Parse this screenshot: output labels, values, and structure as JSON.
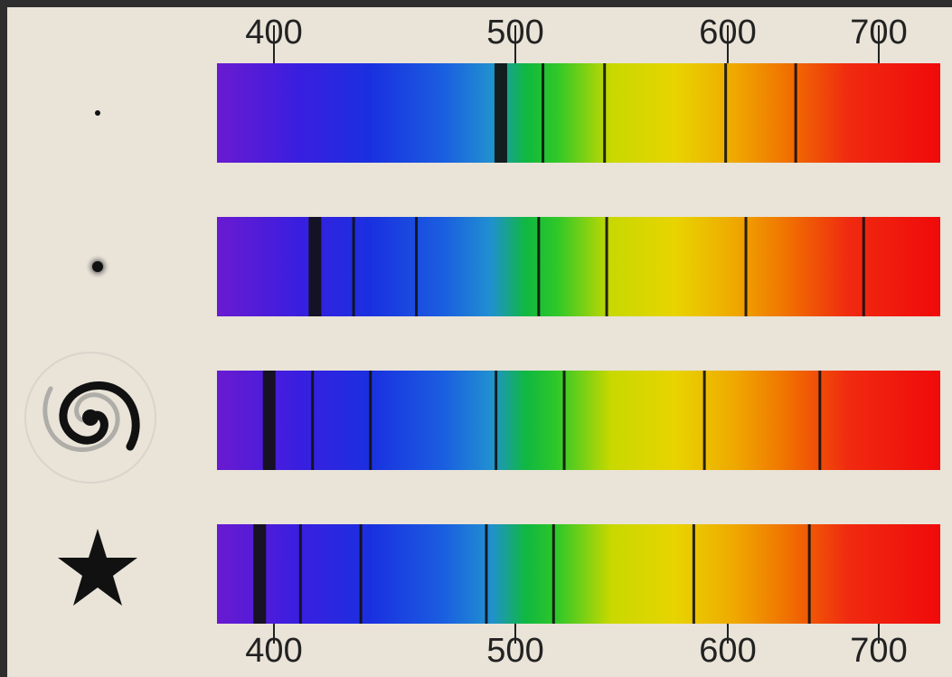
{
  "chart_data": {
    "type": "spectrum",
    "xlim": [
      376,
      741
    ],
    "xticks": [
      400,
      500,
      600,
      700
    ],
    "rows": [
      {
        "lines": [
          494,
          513,
          542,
          599,
          645
        ]
      },
      {
        "lines": [
          417,
          433,
          459,
          511,
          543,
          612,
          690
        ]
      },
      {
        "lines": [
          398,
          416,
          440,
          492,
          523,
          589,
          661
        ]
      },
      {
        "lines": [
          394,
          411,
          436,
          488,
          518,
          584,
          654
        ]
      }
    ]
  }
}
